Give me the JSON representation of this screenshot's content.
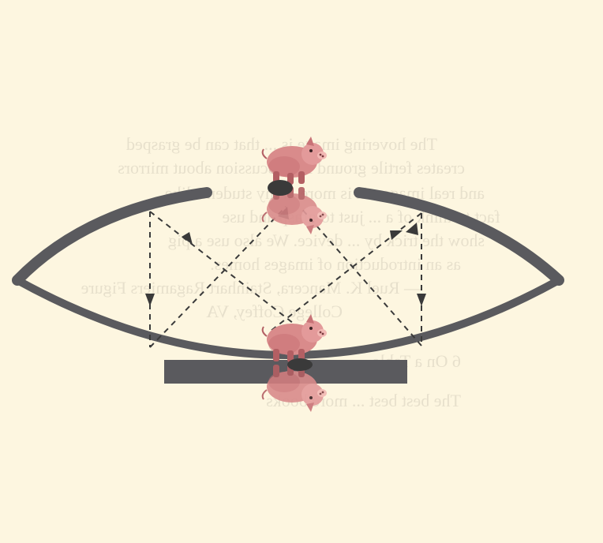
{
  "figure": {
    "background_color": "#fdf6e0",
    "mirror_color": "#5a5a5e",
    "ray_color": "#3a3a3a",
    "pig_color": "#d98b8b",
    "pig_shadow_color": "#b35f63",
    "object_icon": "pig-icon",
    "image_icon": "pig-image-icon",
    "ray_count": 4
  },
  "page": {
    "lines": [
      "The hovering image is ... that can be grasped",
      "creates fertile ground for discussion about mirrors",
      "and real images. It is more ... my students like",
      "fact to think of a ... just to grasp and use",
      "show the trick by ... device. We also use a pig",
      "as an introduction of images homes.",
      "— Ruel K. Mancera, Stainhart Ragamiers Figure",
      "College Coffey, VA",
      "6   On a Table",
      "The best best ... more books"
    ]
  }
}
